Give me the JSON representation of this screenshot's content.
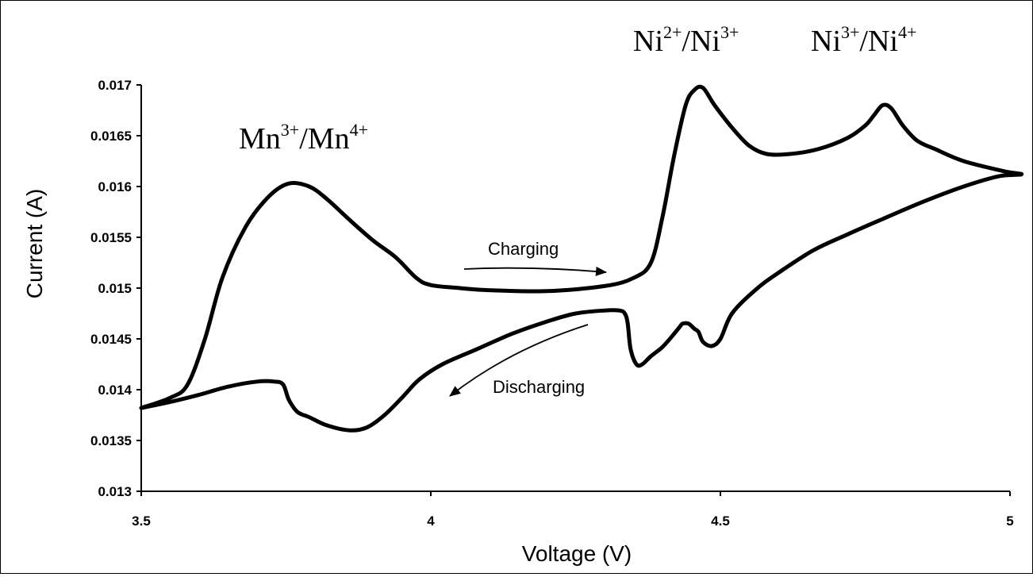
{
  "chart_data": {
    "type": "line",
    "xlabel": "Voltage (V)",
    "ylabel": "Current (A)",
    "xlim": [
      3.5,
      5
    ],
    "ylim": [
      0.013,
      0.017
    ],
    "x_ticks": [
      "3.5",
      "4",
      "4.5",
      "5"
    ],
    "y_ticks": [
      "0.013",
      "0.0135",
      "0.014",
      "0.0145",
      "0.015",
      "0.0155",
      "0.016",
      "0.0165",
      "0.017"
    ],
    "grid": false,
    "series": [
      {
        "points": [
          [
            3.5,
            0.01382
          ],
          [
            3.55,
            0.01392
          ],
          [
            3.58,
            0.01405
          ],
          [
            3.61,
            0.0145
          ],
          [
            3.64,
            0.0151
          ],
          [
            3.68,
            0.0156
          ],
          [
            3.72,
            0.0159
          ],
          [
            3.755,
            0.01603
          ],
          [
            3.79,
            0.016
          ],
          [
            3.82,
            0.01588
          ],
          [
            3.86,
            0.01567
          ],
          [
            3.9,
            0.01547
          ],
          [
            3.94,
            0.0153
          ],
          [
            3.975,
            0.0151
          ],
          [
            4.0,
            0.01503
          ],
          [
            4.05,
            0.015
          ],
          [
            4.1,
            0.01498
          ],
          [
            4.2,
            0.01497
          ],
          [
            4.3,
            0.01502
          ],
          [
            4.35,
            0.0151
          ],
          [
            4.38,
            0.01525
          ],
          [
            4.4,
            0.0157
          ],
          [
            4.42,
            0.0163
          ],
          [
            4.44,
            0.0168
          ],
          [
            4.455,
            0.01695
          ],
          [
            4.47,
            0.01697
          ],
          [
            4.49,
            0.0168
          ],
          [
            4.52,
            0.01658
          ],
          [
            4.55,
            0.0164
          ],
          [
            4.58,
            0.01632
          ],
          [
            4.62,
            0.01632
          ],
          [
            4.67,
            0.01637
          ],
          [
            4.72,
            0.01648
          ],
          [
            4.75,
            0.0166
          ],
          [
            4.765,
            0.0167
          ],
          [
            4.78,
            0.0168
          ],
          [
            4.795,
            0.01677
          ],
          [
            4.815,
            0.0166
          ],
          [
            4.84,
            0.01645
          ],
          [
            4.87,
            0.01637
          ],
          [
            4.92,
            0.01625
          ],
          [
            4.99,
            0.01615
          ],
          [
            5.02,
            0.01612
          ],
          [
            4.98,
            0.0161
          ],
          [
            4.92,
            0.016
          ],
          [
            4.85,
            0.01585
          ],
          [
            4.78,
            0.01568
          ],
          [
            4.72,
            0.01553
          ],
          [
            4.66,
            0.01537
          ],
          [
            4.6,
            0.01515
          ],
          [
            4.56,
            0.01498
          ],
          [
            4.52,
            0.01475
          ],
          [
            4.5,
            0.0145
          ],
          [
            4.485,
            0.01443
          ],
          [
            4.47,
            0.01447
          ],
          [
            4.462,
            0.01457
          ],
          [
            4.455,
            0.0146
          ],
          [
            4.445,
            0.01465
          ],
          [
            4.435,
            0.01465
          ],
          [
            4.43,
            0.01462
          ],
          [
            4.42,
            0.01455
          ],
          [
            4.4,
            0.01442
          ],
          [
            4.38,
            0.01433
          ],
          [
            4.365,
            0.01425
          ],
          [
            4.355,
            0.01425
          ],
          [
            4.345,
            0.0144
          ],
          [
            4.34,
            0.01465
          ],
          [
            4.335,
            0.01475
          ],
          [
            4.325,
            0.01478
          ],
          [
            4.3,
            0.01478
          ],
          [
            4.25,
            0.01475
          ],
          [
            4.2,
            0.01467
          ],
          [
            4.14,
            0.01455
          ],
          [
            4.08,
            0.0144
          ],
          [
            4.02,
            0.01425
          ],
          [
            3.98,
            0.0141
          ],
          [
            3.95,
            0.01392
          ],
          [
            3.92,
            0.01375
          ],
          [
            3.89,
            0.01363
          ],
          [
            3.86,
            0.0136
          ],
          [
            3.82,
            0.01365
          ],
          [
            3.79,
            0.01373
          ],
          [
            3.77,
            0.01378
          ],
          [
            3.755,
            0.0139
          ],
          [
            3.745,
            0.01405
          ],
          [
            3.73,
            0.01408
          ],
          [
            3.7,
            0.01408
          ],
          [
            3.65,
            0.01403
          ],
          [
            3.6,
            0.01395
          ],
          [
            3.55,
            0.01388
          ],
          [
            3.5,
            0.01382
          ]
        ]
      }
    ],
    "annotations": [
      {
        "id": "mn",
        "base1": "Mn",
        "sup1": "3+",
        "mid": "/Mn",
        "sup2": "4+"
      },
      {
        "id": "ni23",
        "base1": "Ni",
        "sup1": "2+",
        "mid": "/Ni",
        "sup2": "3+"
      },
      {
        "id": "ni34",
        "base1": "Ni",
        "sup1": "3+",
        "mid": "/Ni",
        "sup2": "4+"
      }
    ],
    "arrow_labels": {
      "charging": "Charging",
      "discharging": "Discharging"
    }
  }
}
